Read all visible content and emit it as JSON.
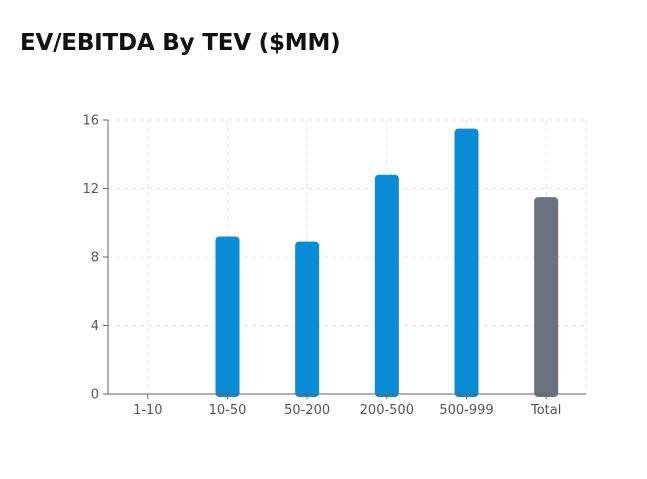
{
  "title": "EV/EBITDA By TEV ($MM)",
  "colors": {
    "primary_bar": "#0a8bd6",
    "total_bar": "#6c7380",
    "axis": "#666666",
    "grid": "#e6e6e6"
  },
  "chart_data": {
    "type": "bar",
    "title": "EV/EBITDA By TEV ($MM)",
    "xlabel": "",
    "ylabel": "",
    "categories": [
      "1-10",
      "10-50",
      "50-200",
      "200-500",
      "500-999",
      "Total"
    ],
    "values": [
      null,
      9.2,
      8.9,
      12.8,
      15.5,
      11.5
    ],
    "ylim": [
      0,
      16
    ],
    "yticks": [
      0,
      4,
      8,
      12,
      16
    ],
    "grid": true,
    "highlight_category": "Total"
  }
}
